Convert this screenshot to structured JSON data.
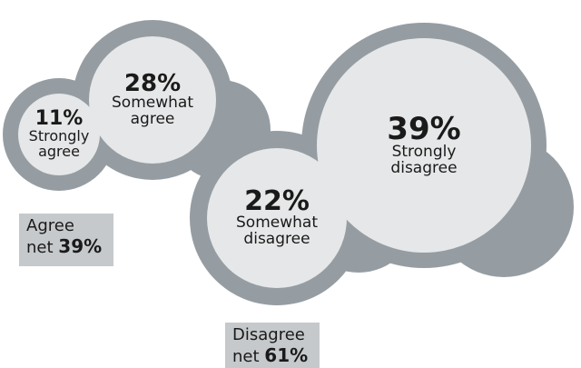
{
  "chart_data": {
    "type": "bubble",
    "series": [
      {
        "label_line1": "Strongly",
        "label_line2": "agree",
        "value": 11,
        "display": "11%"
      },
      {
        "label_line1": "Somewhat",
        "label_line2": "agree",
        "value": 28,
        "display": "28%"
      },
      {
        "label_line1": "Somewhat",
        "label_line2": "disagree",
        "value": 22,
        "display": "22%"
      },
      {
        "label_line1": "Strongly",
        "label_line2": "disagree",
        "value": 39,
        "display": "39%"
      }
    ],
    "nets": [
      {
        "line1": "Agree",
        "prefix": "net",
        "value": "39%"
      },
      {
        "line1": "Disagree",
        "prefix": "net",
        "value": "61%"
      }
    ]
  },
  "colors": {
    "ring": "#959da3",
    "inner": "#e6e7e8",
    "net_box": "#c6c9cb",
    "text": "#1a1a1a"
  }
}
